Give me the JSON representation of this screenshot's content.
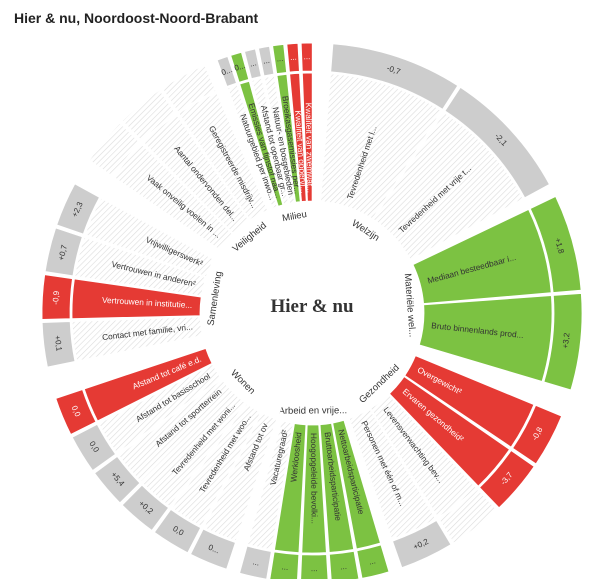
{
  "title": "Hier & nu, Noordoost-Noord-Brabant",
  "center_label": "Hier & nu",
  "colors": {
    "green": "#7cc242",
    "red": "#e53a34",
    "grey_bar": "#cdcdcd",
    "value_cell": "#cdcdcd",
    "hatch": "#ececec",
    "text": "#333333",
    "white_text": "#ffffff"
  },
  "chart_data": {
    "type": "radial-indicator-wheel",
    "groups": [
      {
        "name": "Welzijn",
        "indicators": [
          {
            "label": "Tevredenheid met l...",
            "value_text": "-0,7",
            "status": "neutral"
          },
          {
            "label": "Tevredenheid met vrije t...",
            "value_text": "-2,1",
            "status": "neutral"
          }
        ]
      },
      {
        "name": "Materiële wel...",
        "indicators": [
          {
            "label": "Mediaan besteedbaar i...",
            "value_text": "+1,8",
            "status": "positive"
          },
          {
            "label": "Bruto binnenlands prod...",
            "value_text": "+3,2",
            "status": "positive"
          }
        ]
      },
      {
        "name": "Gezondheid",
        "indicators": [
          {
            "label": "Overgewicht²",
            "value_text": "-0,8",
            "status": "negative"
          },
          {
            "label": "Ervaren gezondheid²",
            "value_text": "-3,7",
            "status": "negative"
          },
          {
            "label": "Levensverwachting bev...",
            "value_text": "",
            "status": "empty"
          },
          {
            "label": "Personen met één of m...",
            "value_text": "+0,2",
            "status": "neutral"
          }
        ]
      },
      {
        "name": "Arbeid en vrije...",
        "indicators": [
          {
            "label": "Nettoarbeidsparticipatie",
            "value_text": "...",
            "status": "positive"
          },
          {
            "label": "Bruttoarbeidsparticipatie",
            "value_text": "...",
            "status": "positive"
          },
          {
            "label": "Hoogopgeleide bevolki...",
            "value_text": "...",
            "status": "positive"
          },
          {
            "label": "Werkloosheid",
            "value_text": "...",
            "status": "positive"
          },
          {
            "label": "Vacaturegraad²",
            "value_text": "...",
            "status": "neutral"
          }
        ]
      },
      {
        "name": "Wonen",
        "indicators": [
          {
            "label": "Afstand tot ov",
            "value_text": "0...",
            "status": "neutral"
          },
          {
            "label": "Tevredenheid met woo...",
            "value_text": "0,0",
            "status": "neutral"
          },
          {
            "label": "Tevredenheid met woni...",
            "value_text": "+0,2",
            "status": "neutral"
          },
          {
            "label": "Afstand tot sportterrein",
            "value_text": "+5,4",
            "status": "neutral"
          },
          {
            "label": "Afstand tot basisschool",
            "value_text": "0,0",
            "status": "neutral"
          },
          {
            "label": "Afstand tot café e.d.",
            "value_text": "0,0",
            "status": "negative"
          }
        ]
      },
      {
        "name": "Samenleving",
        "indicators": [
          {
            "label": "Contact met familie, vri...",
            "value_text": "+0,1",
            "status": "neutral"
          },
          {
            "label": "Vertrouwen in institutie...",
            "value_text": "-0,9",
            "status": "negative"
          },
          {
            "label": "Vertrouwen in anderen²",
            "value_text": "+0,7",
            "status": "neutral"
          },
          {
            "label": "Vrijwilligerswerk²",
            "value_text": "+2,3",
            "status": "neutral"
          }
        ]
      },
      {
        "name": "Veiligheid",
        "indicators": [
          {
            "label": "Vaak onveilig voelen in ...",
            "value_text": "",
            "status": "empty"
          },
          {
            "label": "Aantal ondervonden del...",
            "value_text": "",
            "status": "empty"
          },
          {
            "label": "Geregistreerde misdrijv...",
            "value_text": "",
            "status": "empty"
          }
        ]
      },
      {
        "name": "Milieu",
        "indicators": [
          {
            "label": "Natuurgebied per inwo...",
            "value_text": "0...",
            "status": "neutral"
          },
          {
            "label": "Emissies van fijnstof naa...",
            "value_text": "0...",
            "status": "positive"
          },
          {
            "label": "Afstand tot openbaar gr...",
            "value_text": "...",
            "status": "neutral"
          },
          {
            "label": "Natuur- en bosgebieden",
            "value_text": "...",
            "status": "neutral"
          },
          {
            "label": "Broeikasgasemissies per...",
            "value_text": "...",
            "status": "positive"
          },
          {
            "label": "Kwaliteit van oppervl...",
            "value_text": "...",
            "status": "negative"
          },
          {
            "label": "Kwaliteit van zwemwat...",
            "value_text": "...",
            "status": "negative"
          }
        ]
      }
    ]
  }
}
